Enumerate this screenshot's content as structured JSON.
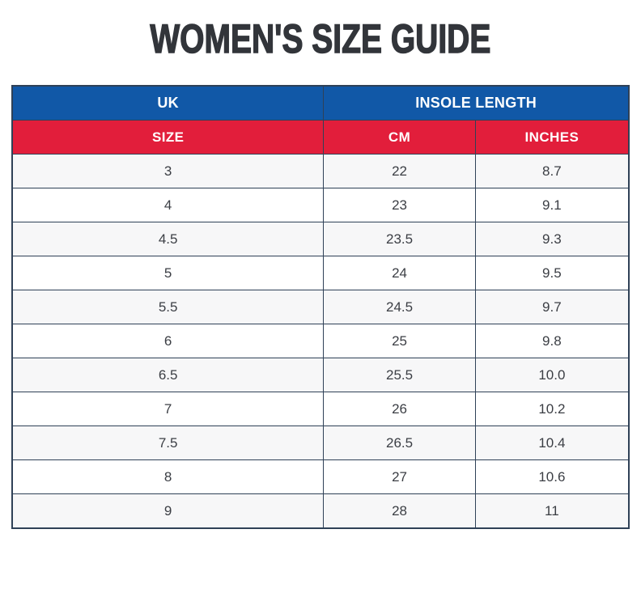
{
  "page": {
    "title": "WOMEN'S SIZE GUIDE"
  },
  "table": {
    "header_top": {
      "uk": "UK",
      "insole_length": "INSOLE LENGTH"
    },
    "header_sub": {
      "size": "SIZE",
      "cm": "CM",
      "inches": "INCHES"
    },
    "rows": [
      {
        "size": "3",
        "cm": "22",
        "inches": "8.7"
      },
      {
        "size": "4",
        "cm": "23",
        "inches": "9.1"
      },
      {
        "size": "4.5",
        "cm": "23.5",
        "inches": "9.3"
      },
      {
        "size": "5",
        "cm": "24",
        "inches": "9.5"
      },
      {
        "size": "5.5",
        "cm": "24.5",
        "inches": "9.7"
      },
      {
        "size": "6",
        "cm": "25",
        "inches": "9.8"
      },
      {
        "size": "6.5",
        "cm": "25.5",
        "inches": "10.0"
      },
      {
        "size": "7",
        "cm": "26",
        "inches": "10.2"
      },
      {
        "size": "7.5",
        "cm": "26.5",
        "inches": "10.4"
      },
      {
        "size": "8",
        "cm": "27",
        "inches": "10.6"
      },
      {
        "size": "9",
        "cm": "28",
        "inches": "11"
      }
    ]
  },
  "colors": {
    "header_blue": "#1158a7",
    "header_red": "#e21e3b",
    "border_navy": "#2f4157",
    "row_alt_gray": "#f7f7f8",
    "title_text": "#32353a",
    "cell_text": "#3b3e44",
    "header_text": "#ffffff"
  }
}
